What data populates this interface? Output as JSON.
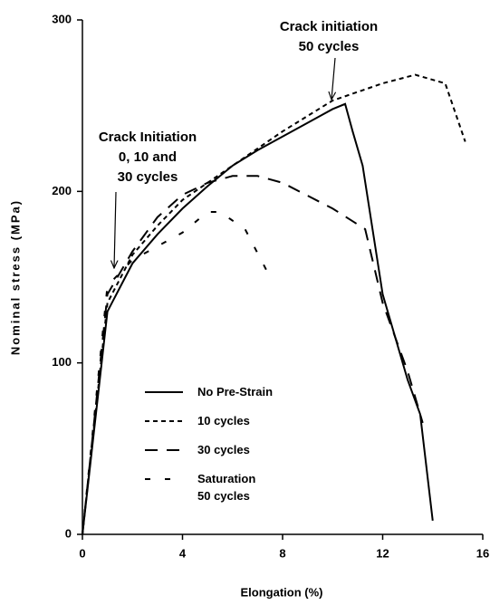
{
  "chart_data": {
    "type": "line",
    "xlabel": "Elongation (%)",
    "ylabel": "Nominal stress (MPa)",
    "xlim": [
      0,
      16
    ],
    "xticks": [
      0,
      4,
      8,
      12,
      16
    ],
    "ylim": [
      0,
      300
    ],
    "yticks": [
      0,
      100,
      200,
      300
    ],
    "annotations": [
      {
        "lines": [
          "Crack initiation",
          "50 cycles"
        ],
        "x": 10,
        "y": 251
      },
      {
        "lines": [
          "Crack Initiation",
          "0, 10 and",
          "30 cycles"
        ],
        "x": 1.2,
        "y": 155
      }
    ],
    "series": [
      {
        "name": "No Pre-Strain",
        "color": "#000000",
        "dash": "none",
        "x": [
          0,
          1,
          2,
          3,
          4,
          5,
          6,
          7,
          8,
          9,
          10,
          10.5,
          10.8,
          11.2,
          12,
          13,
          13.5,
          14
        ],
        "values": [
          0,
          130,
          158,
          175,
          190,
          203,
          215,
          224,
          232,
          240,
          248,
          251,
          235,
          215,
          140,
          90,
          70,
          8
        ]
      },
      {
        "name": "10 cycles",
        "color": "#000000",
        "dash": "5,4",
        "x": [
          0,
          1,
          2,
          3,
          4,
          5,
          6,
          8,
          10,
          12,
          13.3,
          14.5,
          15.3
        ],
        "values": [
          0,
          135,
          163,
          180,
          195,
          205,
          215,
          235,
          253,
          263,
          268,
          263,
          229
        ]
      },
      {
        "name": "30 cycles",
        "color": "#000000",
        "dash": "14,10",
        "x": [
          0,
          1,
          2,
          3,
          4,
          5,
          6,
          7,
          8,
          10,
          11.3,
          12,
          13,
          13.6
        ],
        "values": [
          0,
          140,
          165,
          185,
          198,
          205,
          209,
          209,
          205,
          190,
          178,
          135,
          95,
          65
        ]
      },
      {
        "name": "Saturation\n50 cycles",
        "color": "#000000",
        "dash": "6,16",
        "x": [
          0,
          1,
          2,
          3,
          4,
          5,
          5.5,
          6.5,
          7.5
        ],
        "values": [
          0,
          145,
          160,
          168,
          176,
          188,
          188,
          178,
          150
        ]
      }
    ]
  }
}
